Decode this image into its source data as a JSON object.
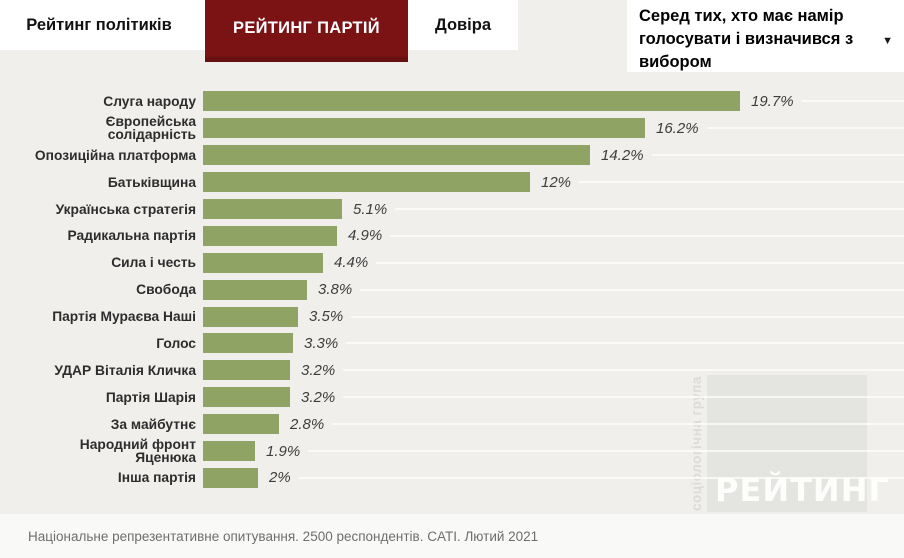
{
  "tabs": [
    {
      "label": "Рейтинг політиків",
      "active": false
    },
    {
      "label": "РЕЙТИНГ ПАРТІЙ",
      "active": true
    },
    {
      "label": "Довіра",
      "active": false
    }
  ],
  "filter_dropdown": {
    "label": "Серед тих, хто має намір голосувати і визначився з вибором"
  },
  "icons": {
    "chevron_down": "▼"
  },
  "chart_data": {
    "type": "bar",
    "orientation": "horizontal",
    "title": "РЕЙТИНГ ПАРТІЙ",
    "categories": [
      "Слуга народу",
      "Європейська\nсолідарність",
      "Опозиційна платформа",
      "Батьківщина",
      "Українська стратегія",
      "Радикальна партія",
      "Сила і честь",
      "Свобода",
      "Партія Мураєва Наші",
      "Голос",
      "УДАР Віталія Кличка",
      "Партія Шарія",
      "За майбутнє",
      "Народний фронт\nЯценюка",
      "Інша партія"
    ],
    "values": [
      19.7,
      16.2,
      14.2,
      12,
      5.1,
      4.9,
      4.4,
      3.8,
      3.5,
      3.3,
      3.2,
      3.2,
      2.8,
      1.9,
      2
    ],
    "value_labels": [
      "19.7%",
      "16.2%",
      "14.2%",
      "12%",
      "5.1%",
      "4.9%",
      "4.4%",
      "3.8%",
      "3.5%",
      "3.3%",
      "3.2%",
      "3.2%",
      "2.8%",
      "1.9%",
      "2%"
    ],
    "bar_color": "#8ea364",
    "xlim": [
      0,
      19.7
    ],
    "grid": false,
    "legend": "none"
  },
  "watermark": {
    "brand": "РЕЙТИНГ",
    "tagline": "соціологічна група"
  },
  "footer": {
    "note": "Національне репрезентативне опитування. 2500 респондентів. CATI. Лютий 2021"
  },
  "colors": {
    "active_tab": "#7b1315",
    "bar": "#8ea364",
    "background": "#f0efec"
  }
}
